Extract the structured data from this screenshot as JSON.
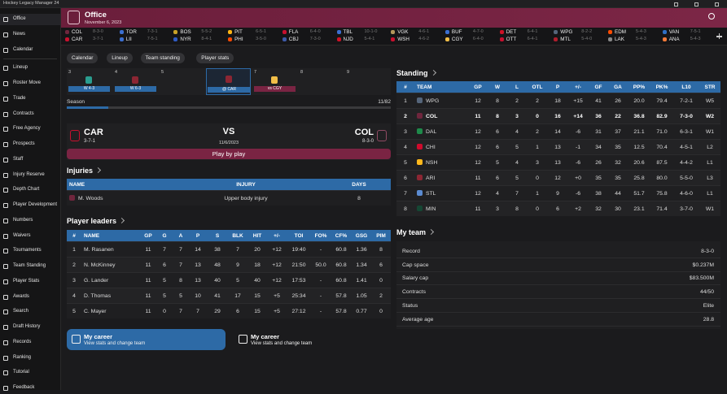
{
  "window_title": "Hockey Legacy Manager 24",
  "sidebar": [
    "Office",
    "News",
    "Calendar",
    "Lineup",
    "Roster Move",
    "Trade",
    "Contracts",
    "Free Agency",
    "Prospects",
    "Staff",
    "Injury Reserve",
    "Depth Chart",
    "Player Development",
    "Numbers",
    "Waivers",
    "Tournaments",
    "Team Standing",
    "Player Stats",
    "Awards",
    "Search",
    "Draft History",
    "Records",
    "Ranking",
    "Tutorial",
    "Feedback"
  ],
  "header": {
    "title": "Office",
    "date": "November 6, 2023"
  },
  "scores": [
    {
      "team1": "COL",
      "rec1": "8-3-0",
      "team2": "CAR",
      "rec2": "3-7-1"
    },
    {
      "team1": "TOR",
      "rec1": "7-3-1",
      "team2": "LII",
      "rec2": "7-5-1"
    },
    {
      "team1": "BOS",
      "rec1": "5-5-2",
      "team2": "NYR",
      "rec2": "8-4-1"
    },
    {
      "team1": "PIT",
      "rec1": "6-5-1",
      "team2": "PHI",
      "rec2": "3-5-0"
    },
    {
      "team1": "FLA",
      "rec1": "6-4-0",
      "team2": "CBJ",
      "rec2": "7-3-0"
    },
    {
      "team1": "TBL",
      "rec1": "10-1-0",
      "team2": "NJD",
      "rec2": "5-4-1"
    },
    {
      "team1": "VGK",
      "rec1": "4-6-1",
      "team2": "WSH",
      "rec2": "4-6-2"
    },
    {
      "team1": "BUF",
      "rec1": "4-7-0",
      "team2": "CGY",
      "rec2": "6-4-0"
    },
    {
      "team1": "DET",
      "rec1": "6-4-1",
      "team2": "OTT",
      "rec2": "6-4-1"
    },
    {
      "team1": "WPG",
      "rec1": "8-2-2",
      "team2": "MTL",
      "rec2": "5-4-0"
    },
    {
      "team1": "EDM",
      "rec1": "5-4-3",
      "team2": "LAK",
      "rec2": "5-4-3"
    },
    {
      "team1": "VAN",
      "rec1": "7-5-1",
      "team2": "ANA",
      "rec2": "5-4-3"
    }
  ],
  "tabs": [
    "Calendar",
    "Lineup",
    "Team standing",
    "Player stats"
  ],
  "calendar": [
    {
      "day": "3",
      "result": "W 4-3"
    },
    {
      "day": "4",
      "result": "W 6-3"
    },
    {
      "day": "5"
    },
    {
      "result": "@ CAR"
    },
    {
      "day": "7",
      "result": "vs CGY"
    },
    {
      "day": "8"
    },
    {
      "day": "9"
    }
  ],
  "season": {
    "label": "Season",
    "progress": "11/82"
  },
  "match": {
    "home": "CAR",
    "home_record": "3-7-1",
    "vs": "VS",
    "date": "11/6/2023",
    "away": "COL",
    "away_record": "8-3-0",
    "button": "Play by play"
  },
  "injuries": {
    "title": "Injuries",
    "columns": [
      "NAME",
      "INJURY",
      "DAYS"
    ],
    "rows": [
      [
        "M. Woods",
        "Upper body injury",
        "8"
      ]
    ]
  },
  "leaders": {
    "title": "Player leaders",
    "columns": [
      "#",
      "NAME",
      "GP",
      "G",
      "A",
      "P",
      "S",
      "BLK",
      "HIT",
      "+/-",
      "TOI",
      "FO%",
      "CF%",
      "GSG",
      "PIM"
    ],
    "rows": [
      [
        "1",
        "M. Rasanen",
        "11",
        "7",
        "7",
        "14",
        "38",
        "7",
        "20",
        "+12",
        "19:40",
        "-",
        "60.8",
        "1.36",
        "8"
      ],
      [
        "2",
        "N. McKinney",
        "11",
        "6",
        "7",
        "13",
        "48",
        "9",
        "18",
        "+12",
        "21:50",
        "50.0",
        "60.8",
        "1.34",
        "6"
      ],
      [
        "3",
        "G. Lander",
        "11",
        "5",
        "8",
        "13",
        "40",
        "5",
        "40",
        "+12",
        "17:53",
        "-",
        "60.8",
        "1.41",
        "0"
      ],
      [
        "4",
        "D. Thomas",
        "11",
        "5",
        "5",
        "10",
        "41",
        "17",
        "15",
        "+5",
        "25:34",
        "-",
        "57.8",
        "1.05",
        "2"
      ],
      [
        "5",
        "C. Mayer",
        "11",
        "0",
        "7",
        "7",
        "29",
        "6",
        "15",
        "+5",
        "27:12",
        "-",
        "57.8",
        "0.77",
        "0"
      ]
    ]
  },
  "career_cards": [
    {
      "title": "My career",
      "subtitle": "View stats and change team"
    },
    {
      "title": "My career",
      "subtitle": "View stats and change team"
    }
  ],
  "standing": {
    "title": "Standing",
    "columns": [
      "#",
      "TEAM",
      "GP",
      "W",
      "L",
      "OTL",
      "P",
      "+/-",
      "GF",
      "GA",
      "PP%",
      "PK%",
      "L10",
      "STR"
    ],
    "rows": [
      [
        "1",
        "WPG",
        "12",
        "8",
        "2",
        "2",
        "18",
        "+15",
        "41",
        "26",
        "20.0",
        "79.4",
        "7-2-1",
        "W5"
      ],
      [
        "2",
        "COL",
        "11",
        "8",
        "3",
        "0",
        "16",
        "+14",
        "36",
        "22",
        "36.8",
        "82.9",
        "7-3-0",
        "W2"
      ],
      [
        "3",
        "DAL",
        "12",
        "6",
        "4",
        "2",
        "14",
        "-6",
        "31",
        "37",
        "21.1",
        "71.0",
        "6-3-1",
        "W1"
      ],
      [
        "4",
        "CHI",
        "12",
        "6",
        "5",
        "1",
        "13",
        "-1",
        "34",
        "35",
        "12.5",
        "70.4",
        "4-5-1",
        "L2"
      ],
      [
        "5",
        "NSH",
        "12",
        "5",
        "4",
        "3",
        "13",
        "-6",
        "26",
        "32",
        "20.6",
        "87.5",
        "4-4-2",
        "L1"
      ],
      [
        "6",
        "ARI",
        "11",
        "6",
        "5",
        "0",
        "12",
        "+0",
        "35",
        "35",
        "25.8",
        "80.0",
        "5-5-0",
        "L3"
      ],
      [
        "7",
        "STL",
        "12",
        "4",
        "7",
        "1",
        "9",
        "-6",
        "38",
        "44",
        "51.7",
        "75.8",
        "4-6-0",
        "L1"
      ],
      [
        "8",
        "MIN",
        "11",
        "3",
        "8",
        "0",
        "6",
        "+2",
        "32",
        "30",
        "23.1",
        "71.4",
        "3-7-0",
        "W1"
      ]
    ]
  },
  "my_team": {
    "title": "My team",
    "rows": [
      [
        "Record",
        "8-3-0"
      ],
      [
        "Cap space",
        "$0.237M"
      ],
      [
        "Salary cap",
        "$83.500M"
      ],
      [
        "Contracts",
        "44/50"
      ],
      [
        "Status",
        "Elite"
      ],
      [
        "Average age",
        "28.8"
      ]
    ]
  }
}
